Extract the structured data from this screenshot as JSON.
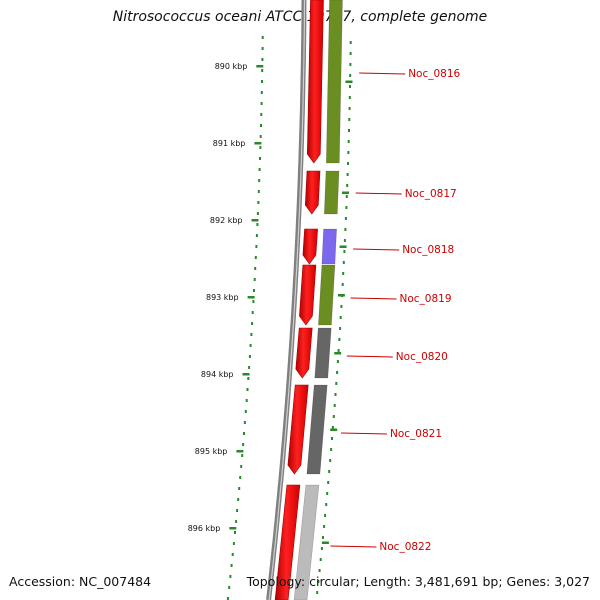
{
  "title": "Nitrosococcus oceani ATCC 19707, complete genome",
  "accession": "Accession: NC_007484",
  "summary": "Topology: circular; Length: 3,481,691 bp; Genes: 3,027",
  "colors": {
    "backbone": "#808080",
    "cds_strand": "#ff0000",
    "dots": "#2a8a2a",
    "tick_mark": "#2a8a2a",
    "label": "#cc0000"
  },
  "ticks": [
    "890 kbp",
    "891 kbp",
    "892 kbp",
    "893 kbp",
    "894 kbp",
    "895 kbp",
    "896 kbp"
  ],
  "genes": [
    {
      "label": "Noc_0816",
      "cog_color": "#6b8e23"
    },
    {
      "label": "Noc_0817",
      "cog_color": "#6b8e23"
    },
    {
      "label": "Noc_0818",
      "cog_color": "#7b68ee"
    },
    {
      "label": "Noc_0819",
      "cog_color": "#6b8e23"
    },
    {
      "label": "Noc_0820",
      "cog_color": "#666666"
    },
    {
      "label": "Noc_0821",
      "cog_color": "#666666"
    },
    {
      "label": "Noc_0822",
      "cog_color": "#bbbbbb"
    }
  ]
}
